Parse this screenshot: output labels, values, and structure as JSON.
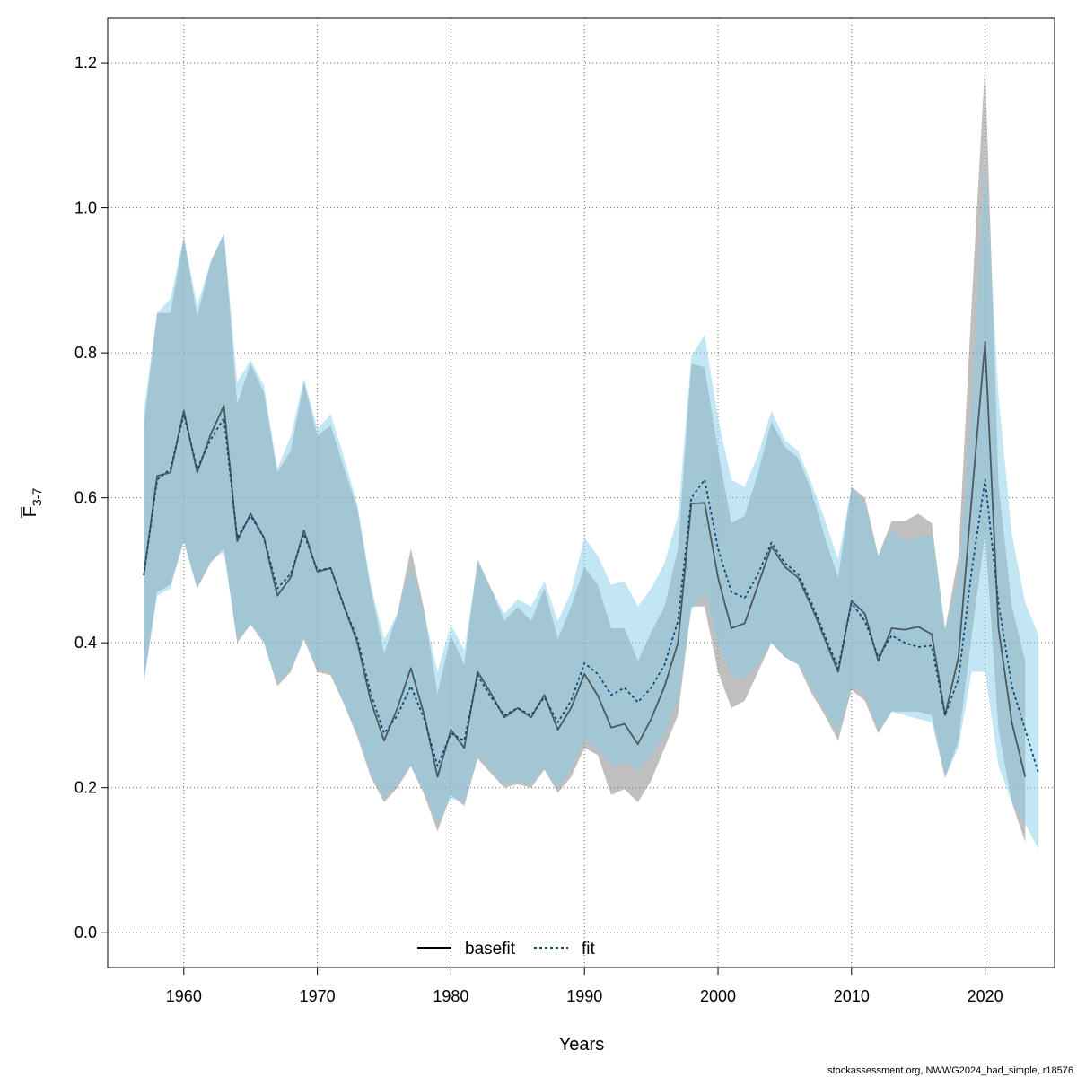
{
  "chart_data": {
    "type": "line",
    "title": "",
    "xlabel": "Years",
    "ylabel": "F3-7",
    "ylabel_main": "F",
    "ylabel_sub": "3-7",
    "xlim": [
      1954.3,
      2025.2
    ],
    "ylim": [
      -0.048,
      1.262
    ],
    "xticks": [
      1960,
      1970,
      1980,
      1990,
      2000,
      2010,
      2020
    ],
    "yticks": [
      0.0,
      0.2,
      0.4,
      0.6,
      0.8,
      1.0,
      1.2
    ],
    "xtick_labels": [
      "1960",
      "1970",
      "1980",
      "1990",
      "2000",
      "2010",
      "2020"
    ],
    "ytick_labels": [
      "0.0",
      "0.2",
      "0.4",
      "0.6",
      "0.8",
      "1.0",
      "1.2"
    ],
    "grid": true,
    "legend_position": "bottom-center",
    "footer": "stockassessment.org, NWWG2024_had_simple, r18576",
    "series": [
      {
        "name": "basefit",
        "color": "#000000",
        "band_color": "#7f7f7f",
        "line_style": "solid",
        "x": [
          1957,
          1958,
          1959,
          1960,
          1961,
          1962,
          1963,
          1964,
          1965,
          1966,
          1967,
          1968,
          1969,
          1970,
          1971,
          1972,
          1973,
          1974,
          1975,
          1976,
          1977,
          1978,
          1979,
          1980,
          1981,
          1982,
          1983,
          1984,
          1985,
          1986,
          1987,
          1988,
          1989,
          1990,
          1991,
          1992,
          1993,
          1994,
          1995,
          1996,
          1997,
          1998,
          1999,
          2000,
          2001,
          2002,
          2003,
          2004,
          2005,
          2006,
          2007,
          2008,
          2009,
          2010,
          2011,
          2012,
          2013,
          2014,
          2015,
          2016,
          2017,
          2018,
          2019,
          2020,
          2021,
          2022,
          2023
        ],
        "values": [
          0.493,
          0.63,
          0.635,
          0.72,
          0.635,
          0.687,
          0.727,
          0.54,
          0.578,
          0.545,
          0.465,
          0.49,
          0.555,
          0.498,
          0.503,
          0.45,
          0.4,
          0.32,
          0.265,
          0.31,
          0.365,
          0.3,
          0.215,
          0.28,
          0.255,
          0.36,
          0.33,
          0.297,
          0.31,
          0.297,
          0.328,
          0.28,
          0.31,
          0.357,
          0.327,
          0.283,
          0.288,
          0.26,
          0.295,
          0.34,
          0.4,
          0.592,
          0.593,
          0.49,
          0.42,
          0.427,
          0.48,
          0.533,
          0.505,
          0.49,
          0.45,
          0.405,
          0.36,
          0.458,
          0.44,
          0.375,
          0.42,
          0.418,
          0.422,
          0.412,
          0.3,
          0.38,
          0.6,
          0.815,
          0.42,
          0.29,
          0.215
        ],
        "lower": [
          0.345,
          0.47,
          0.48,
          0.54,
          0.475,
          0.51,
          0.53,
          0.4,
          0.425,
          0.4,
          0.34,
          0.36,
          0.405,
          0.36,
          0.355,
          0.315,
          0.27,
          0.215,
          0.18,
          0.2,
          0.23,
          0.19,
          0.14,
          0.19,
          0.175,
          0.24,
          0.22,
          0.2,
          0.205,
          0.2,
          0.225,
          0.193,
          0.215,
          0.255,
          0.245,
          0.19,
          0.198,
          0.18,
          0.21,
          0.255,
          0.3,
          0.45,
          0.45,
          0.36,
          0.31,
          0.32,
          0.36,
          0.4,
          0.38,
          0.37,
          0.33,
          0.3,
          0.265,
          0.335,
          0.32,
          0.275,
          0.305,
          0.305,
          0.305,
          0.3,
          0.213,
          0.265,
          0.41,
          0.55,
          0.28,
          0.18,
          0.125
        ],
        "upper": [
          0.7,
          0.855,
          0.855,
          0.96,
          0.85,
          0.925,
          0.965,
          0.73,
          0.785,
          0.745,
          0.635,
          0.665,
          0.76,
          0.685,
          0.7,
          0.64,
          0.585,
          0.475,
          0.385,
          0.44,
          0.53,
          0.445,
          0.33,
          0.41,
          0.37,
          0.515,
          0.475,
          0.43,
          0.45,
          0.43,
          0.475,
          0.405,
          0.45,
          0.505,
          0.48,
          0.42,
          0.42,
          0.375,
          0.415,
          0.45,
          0.53,
          0.785,
          0.78,
          0.665,
          0.565,
          0.575,
          0.635,
          0.705,
          0.67,
          0.655,
          0.61,
          0.545,
          0.49,
          0.615,
          0.6,
          0.52,
          0.568,
          0.568,
          0.578,
          0.565,
          0.418,
          0.52,
          0.87,
          1.2,
          0.62,
          0.45,
          0.375
        ]
      },
      {
        "name": "fit",
        "color": "#0a4a7a",
        "band_color": "#87ceeb",
        "line_style": "dotted",
        "x": [
          1957,
          1958,
          1959,
          1960,
          1961,
          1962,
          1963,
          1964,
          1965,
          1966,
          1967,
          1968,
          1969,
          1970,
          1971,
          1972,
          1973,
          1974,
          1975,
          1976,
          1977,
          1978,
          1979,
          1980,
          1981,
          1982,
          1983,
          1984,
          1985,
          1986,
          1987,
          1988,
          1989,
          1990,
          1991,
          1992,
          1993,
          1994,
          1995,
          1996,
          1997,
          1998,
          1999,
          2000,
          2001,
          2002,
          2003,
          2004,
          2005,
          2006,
          2007,
          2008,
          2009,
          2010,
          2011,
          2012,
          2013,
          2014,
          2015,
          2016,
          2017,
          2018,
          2019,
          2020,
          2021,
          2022,
          2023,
          2024
        ],
        "values": [
          0.493,
          0.625,
          0.64,
          0.715,
          0.64,
          0.68,
          0.71,
          0.545,
          0.575,
          0.545,
          0.475,
          0.495,
          0.55,
          0.5,
          0.503,
          0.45,
          0.405,
          0.33,
          0.275,
          0.3,
          0.34,
          0.295,
          0.23,
          0.275,
          0.265,
          0.355,
          0.325,
          0.3,
          0.31,
          0.3,
          0.325,
          0.29,
          0.32,
          0.372,
          0.357,
          0.328,
          0.338,
          0.318,
          0.338,
          0.37,
          0.43,
          0.6,
          0.625,
          0.53,
          0.47,
          0.462,
          0.495,
          0.538,
          0.51,
          0.495,
          0.455,
          0.41,
          0.365,
          0.455,
          0.43,
          0.38,
          0.41,
          0.4,
          0.394,
          0.396,
          0.3,
          0.35,
          0.5,
          0.625,
          0.455,
          0.34,
          0.28,
          0.22
        ],
        "lower": [
          0.345,
          0.465,
          0.475,
          0.54,
          0.475,
          0.515,
          0.525,
          0.405,
          0.425,
          0.4,
          0.345,
          0.365,
          0.405,
          0.365,
          0.36,
          0.315,
          0.275,
          0.22,
          0.185,
          0.205,
          0.23,
          0.195,
          0.15,
          0.185,
          0.18,
          0.245,
          0.225,
          0.205,
          0.21,
          0.205,
          0.225,
          0.2,
          0.225,
          0.265,
          0.255,
          0.23,
          0.235,
          0.225,
          0.245,
          0.275,
          0.32,
          0.445,
          0.47,
          0.4,
          0.355,
          0.35,
          0.37,
          0.4,
          0.38,
          0.37,
          0.34,
          0.305,
          0.275,
          0.34,
          0.33,
          0.28,
          0.305,
          0.3,
          0.295,
          0.29,
          0.215,
          0.255,
          0.36,
          0.36,
          0.23,
          0.18,
          0.15,
          0.115
        ],
        "upper": [
          0.72,
          0.855,
          0.875,
          0.96,
          0.865,
          0.925,
          0.965,
          0.76,
          0.79,
          0.755,
          0.64,
          0.685,
          0.765,
          0.695,
          0.715,
          0.655,
          0.59,
          0.48,
          0.405,
          0.44,
          0.505,
          0.44,
          0.36,
          0.425,
          0.39,
          0.51,
          0.475,
          0.44,
          0.46,
          0.45,
          0.485,
          0.43,
          0.47,
          0.545,
          0.52,
          0.48,
          0.485,
          0.45,
          0.475,
          0.51,
          0.575,
          0.795,
          0.825,
          0.71,
          0.625,
          0.615,
          0.66,
          0.72,
          0.68,
          0.665,
          0.62,
          0.57,
          0.515,
          0.615,
          0.59,
          0.52,
          0.555,
          0.54,
          0.545,
          0.55,
          0.42,
          0.49,
          0.72,
          1.07,
          0.74,
          0.55,
          0.455,
          0.41
        ]
      }
    ]
  }
}
